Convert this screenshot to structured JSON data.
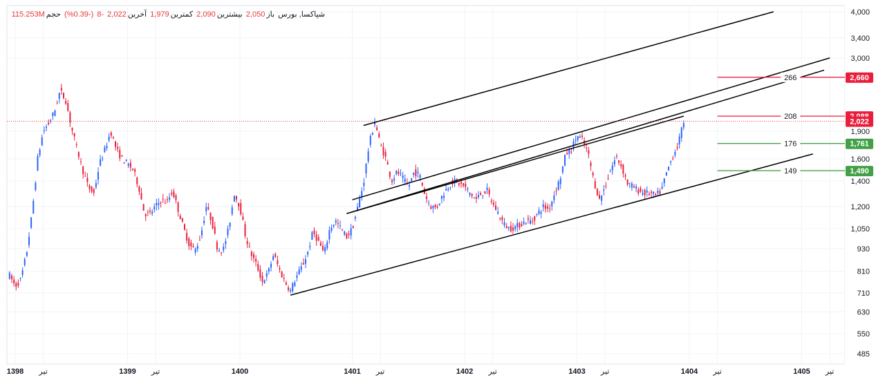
{
  "legend": {
    "symbol": "شپاکسا, بورس",
    "open_label": "باز",
    "open_value": "2,050",
    "high_label": "بیشترین",
    "high_value": "2,090",
    "low_label": "کمترین",
    "low_value": "1,979",
    "close_label": "آخرین",
    "close_value": "2,022",
    "change_value": "-8",
    "change_pct": "(-0.39%)",
    "volume_label": "حجم",
    "volume_value": "115.253M"
  },
  "colors": {
    "up": "#2962ff",
    "down": "#e91e3c",
    "trendline": "#000000",
    "target_up": "#e91e3c",
    "target_down": "#43a047",
    "price_line": "#e91e3c"
  },
  "chart_data": {
    "type": "candlestick",
    "y_scale": "log",
    "y_ticks": [
      485,
      550,
      630,
      710,
      810,
      930,
      1050,
      1200,
      1400,
      1600,
      1900,
      3000,
      3400,
      4000
    ],
    "y_tick_labels": [
      "485",
      "550",
      "630",
      "710",
      "810",
      "930",
      "1,050",
      "1,200",
      "1,400",
      "1,600",
      "1,900",
      "3,000",
      "3,400",
      "4,000"
    ],
    "x_labels": [
      {
        "label": "1398",
        "t": 0,
        "bold": true
      },
      {
        "label": "تیر",
        "t": 0.25,
        "bold": false
      },
      {
        "label": "1399",
        "t": 1,
        "bold": true
      },
      {
        "label": "تیر",
        "t": 1.25,
        "bold": false
      },
      {
        "label": "1400",
        "t": 2,
        "bold": true
      },
      {
        "label": "1401",
        "t": 3,
        "bold": true
      },
      {
        "label": "تیر",
        "t": 3.25,
        "bold": false
      },
      {
        "label": "1402",
        "t": 4,
        "bold": true
      },
      {
        "label": "تیر",
        "t": 4.25,
        "bold": false
      },
      {
        "label": "1403",
        "t": 5,
        "bold": true
      },
      {
        "label": "تیر",
        "t": 5.25,
        "bold": false
      },
      {
        "label": "1404",
        "t": 6,
        "bold": true
      },
      {
        "label": "تیر",
        "t": 6.25,
        "bold": false
      },
      {
        "label": "1405",
        "t": 7,
        "bold": true
      },
      {
        "label": "تیر",
        "t": 7.25,
        "bold": false
      }
    ],
    "price_path": [
      [
        -0.05,
        790
      ],
      [
        0.0,
        740
      ],
      [
        0.05,
        770
      ],
      [
        0.1,
        900
      ],
      [
        0.15,
        1150
      ],
      [
        0.2,
        1600
      ],
      [
        0.25,
        1900
      ],
      [
        0.3,
        2000
      ],
      [
        0.35,
        2150
      ],
      [
        0.4,
        2450
      ],
      [
        0.45,
        2300
      ],
      [
        0.5,
        1950
      ],
      [
        0.55,
        1700
      ],
      [
        0.6,
        1500
      ],
      [
        0.65,
        1350
      ],
      [
        0.7,
        1300
      ],
      [
        0.75,
        1550
      ],
      [
        0.8,
        1700
      ],
      [
        0.85,
        1900
      ],
      [
        0.9,
        1700
      ],
      [
        0.95,
        1600
      ],
      [
        1.0,
        1550
      ],
      [
        1.05,
        1500
      ],
      [
        1.1,
        1350
      ],
      [
        1.15,
        1150
      ],
      [
        1.2,
        1150
      ],
      [
        1.25,
        1200
      ],
      [
        1.3,
        1250
      ],
      [
        1.35,
        1230
      ],
      [
        1.4,
        1320
      ],
      [
        1.45,
        1180
      ],
      [
        1.5,
        1050
      ],
      [
        1.55,
        950
      ],
      [
        1.6,
        920
      ],
      [
        1.65,
        1000
      ],
      [
        1.7,
        1200
      ],
      [
        1.75,
        1100
      ],
      [
        1.8,
        930
      ],
      [
        1.85,
        920
      ],
      [
        1.9,
        1050
      ],
      [
        1.95,
        1300
      ],
      [
        2.0,
        1200
      ],
      [
        2.05,
        1000
      ],
      [
        2.1,
        900
      ],
      [
        2.15,
        840
      ],
      [
        2.2,
        760
      ],
      [
        2.25,
        800
      ],
      [
        2.3,
        900
      ],
      [
        2.35,
        820
      ],
      [
        2.4,
        760
      ],
      [
        2.45,
        720
      ],
      [
        2.5,
        780
      ],
      [
        2.55,
        830
      ],
      [
        2.6,
        900
      ],
      [
        2.65,
        1030
      ],
      [
        2.7,
        970
      ],
      [
        2.75,
        900
      ],
      [
        2.8,
        1050
      ],
      [
        2.85,
        1100
      ],
      [
        2.9,
        1050
      ],
      [
        2.95,
        1000
      ],
      [
        3.0,
        1050
      ],
      [
        3.05,
        1200
      ],
      [
        3.1,
        1380
      ],
      [
        3.15,
        1750
      ],
      [
        3.2,
        2020
      ],
      [
        3.25,
        1750
      ],
      [
        3.3,
        1600
      ],
      [
        3.35,
        1400
      ],
      [
        3.4,
        1480
      ],
      [
        3.45,
        1420
      ],
      [
        3.5,
        1350
      ],
      [
        3.55,
        1480
      ],
      [
        3.6,
        1450
      ],
      [
        3.65,
        1280
      ],
      [
        3.7,
        1200
      ],
      [
        3.75,
        1190
      ],
      [
        3.8,
        1280
      ],
      [
        3.85,
        1350
      ],
      [
        3.9,
        1400
      ],
      [
        3.95,
        1380
      ],
      [
        4.0,
        1350
      ],
      [
        4.05,
        1300
      ],
      [
        4.1,
        1250
      ],
      [
        4.15,
        1300
      ],
      [
        4.2,
        1320
      ],
      [
        4.25,
        1220
      ],
      [
        4.3,
        1150
      ],
      [
        4.35,
        1080
      ],
      [
        4.4,
        1050
      ],
      [
        4.45,
        1060
      ],
      [
        4.5,
        1080
      ],
      [
        4.55,
        1100
      ],
      [
        4.6,
        1100
      ],
      [
        4.65,
        1150
      ],
      [
        4.7,
        1200
      ],
      [
        4.75,
        1180
      ],
      [
        4.8,
        1300
      ],
      [
        4.85,
        1420
      ],
      [
        4.9,
        1650
      ],
      [
        4.95,
        1700
      ],
      [
        5.0,
        1850
      ],
      [
        5.05,
        1800
      ],
      [
        5.1,
        1650
      ],
      [
        5.15,
        1400
      ],
      [
        5.2,
        1250
      ],
      [
        5.25,
        1350
      ],
      [
        5.3,
        1500
      ],
      [
        5.35,
        1620
      ],
      [
        5.4,
        1520
      ],
      [
        5.45,
        1380
      ],
      [
        5.5,
        1350
      ],
      [
        5.55,
        1320
      ],
      [
        5.6,
        1300
      ],
      [
        5.65,
        1300
      ],
      [
        5.7,
        1280
      ],
      [
        5.75,
        1320
      ],
      [
        5.8,
        1480
      ],
      [
        5.85,
        1620
      ],
      [
        5.9,
        1750
      ],
      [
        5.95,
        2022
      ]
    ],
    "channel_lines": [
      {
        "name": "upper-outer",
        "from": [
          3.1,
          1970
        ],
        "to": [
          6.75,
          4000
        ]
      },
      {
        "name": "upper-mid",
        "from": [
          3.0,
          1250
        ],
        "to": [
          7.25,
          3000
        ]
      },
      {
        "name": "lower-mid",
        "from": [
          2.95,
          1150
        ],
        "to": [
          7.2,
          2780
        ]
      },
      {
        "name": "mid-inner",
        "from": [
          2.95,
          1150
        ],
        "to": [
          5.95,
          2088
        ]
      },
      {
        "name": "lower",
        "from": [
          2.45,
          700
        ],
        "to": [
          7.1,
          1650
        ]
      }
    ],
    "target_levels": [
      {
        "value": 2660,
        "label": "266",
        "tag": "2,660",
        "kind": "up"
      },
      {
        "value": 2088,
        "label": "208",
        "tag": "2,088",
        "kind": "up"
      },
      {
        "value": 1761,
        "label": "176",
        "tag": "1,761",
        "kind": "down"
      },
      {
        "value": 1490,
        "label": "149",
        "tag": "1,490",
        "kind": "down"
      }
    ],
    "last_price": {
      "value": 2022,
      "tag": "2,022"
    }
  }
}
